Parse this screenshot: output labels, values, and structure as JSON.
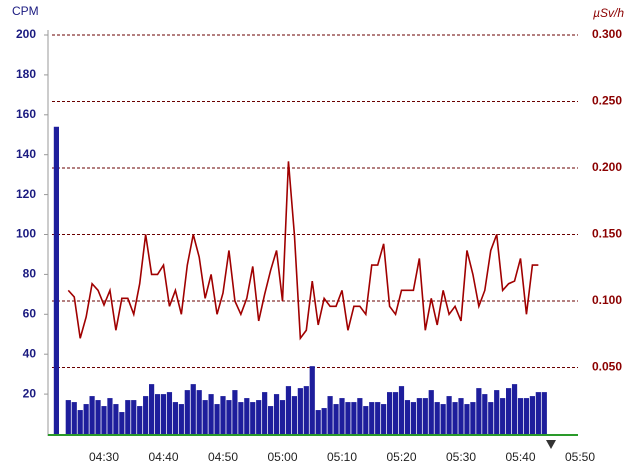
{
  "chart_data": {
    "type": "bar-line",
    "y_label": "CPM",
    "y2_label": "µSv/h",
    "categories": [
      null,
      null,
      null,
      null,
      null,
      null,
      null,
      null,
      "04:30",
      null,
      null,
      null,
      null,
      null,
      null,
      null,
      null,
      null,
      "04:40",
      null,
      null,
      null,
      null,
      null,
      null,
      null,
      null,
      null,
      "04:50",
      null,
      null,
      null,
      null,
      null,
      null,
      null,
      null,
      null,
      "05:00",
      null,
      null,
      null,
      null,
      null,
      null,
      null,
      null,
      null,
      "05:10",
      null,
      null,
      null,
      null,
      null,
      null,
      null,
      null,
      null,
      "05:20",
      null,
      null,
      null,
      null,
      null,
      null,
      null,
      null,
      null,
      "05:30",
      null,
      null,
      null,
      null,
      null,
      null,
      null,
      null,
      null,
      "05:40",
      null,
      null,
      null,
      null,
      null,
      null,
      null,
      null,
      null,
      "05:50"
    ],
    "series": [
      {
        "name": "CPM",
        "type": "bar",
        "color": "#1e1e9c",
        "axis": "y",
        "values": [
          154,
          null,
          17,
          16,
          12,
          15,
          19,
          17,
          14,
          18,
          15,
          11,
          17,
          17,
          14,
          19,
          25,
          20,
          20,
          21,
          16,
          15,
          22,
          25,
          22,
          17,
          20,
          15,
          19,
          17,
          22,
          16,
          18,
          16,
          17,
          21,
          14,
          20,
          17,
          24,
          19,
          23,
          24,
          34,
          12,
          13,
          19,
          15,
          18,
          16,
          16,
          18,
          14,
          16,
          16,
          15,
          21,
          21,
          24,
          17,
          16,
          18,
          18,
          22,
          16,
          15,
          19,
          16,
          18,
          15,
          16,
          23,
          20,
          16,
          22,
          18,
          23,
          25,
          18,
          18,
          19,
          21,
          21,
          null,
          null,
          null,
          null,
          null,
          null
        ]
      },
      {
        "name": "µSv/h",
        "type": "line",
        "color": "#a00000",
        "axis": "y2",
        "values": [
          null,
          null,
          0.108,
          0.103,
          0.072,
          0.088,
          0.113,
          0.108,
          0.097,
          0.108,
          0.078,
          0.102,
          0.102,
          0.09,
          0.113,
          0.15,
          0.12,
          0.12,
          0.127,
          0.096,
          0.108,
          0.09,
          0.127,
          0.15,
          0.133,
          0.102,
          0.12,
          0.09,
          0.106,
          0.138,
          0.1,
          0.09,
          0.102,
          0.126,
          0.085,
          0.105,
          0.123,
          0.138,
          0.1,
          0.205,
          0.15,
          0.072,
          0.078,
          0.115,
          0.082,
          0.102,
          0.096,
          0.096,
          0.108,
          0.078,
          0.096,
          0.096,
          0.09,
          0.127,
          0.127,
          0.143,
          0.096,
          0.09,
          0.108,
          0.108,
          0.108,
          0.132,
          0.078,
          0.102,
          0.082,
          0.108,
          0.09,
          0.096,
          0.085,
          0.138,
          0.12,
          0.096,
          0.108,
          0.138,
          0.15,
          0.108,
          0.113,
          0.115,
          0.132,
          0.09,
          0.127,
          0.127,
          null,
          null,
          null,
          null,
          null,
          null,
          null
        ]
      }
    ],
    "ylim": [
      0,
      200
    ],
    "yticks": [
      20,
      40,
      60,
      80,
      100,
      120,
      140,
      160,
      180,
      200
    ],
    "y2lim": [
      0,
      0.3
    ],
    "y2ticks": [
      {
        "value": 0.05,
        "label": "0.050"
      },
      {
        "value": 0.1,
        "label": "0.100"
      },
      {
        "value": 0.15,
        "label": "0.150"
      },
      {
        "value": 0.2,
        "label": "0.200"
      },
      {
        "value": 0.25,
        "label": "0.250"
      },
      {
        "value": 0.3,
        "label": "0.300"
      }
    ],
    "grid": true
  }
}
